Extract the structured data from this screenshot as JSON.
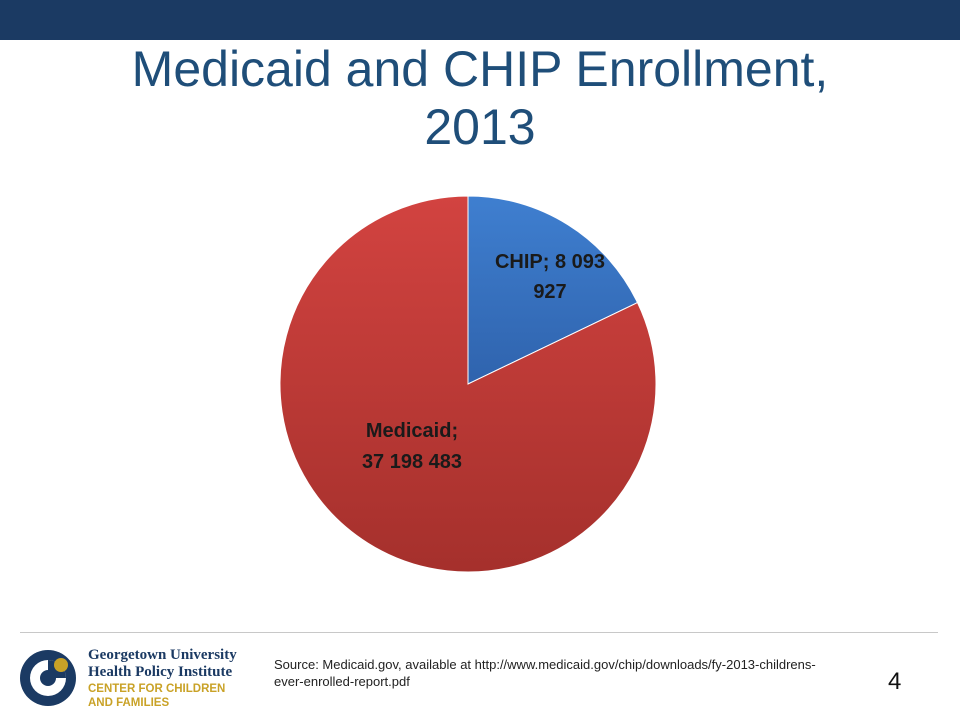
{
  "header": {
    "title_line1": "Medicaid and CHIP Enrollment,",
    "title_line2": "2013"
  },
  "colors": {
    "top_bar": "#1b3a63",
    "title": "#1f4e79",
    "chip": "#3b78c9",
    "medicaid": "#c93a37"
  },
  "chart_data": {
    "type": "pie",
    "slices": [
      {
        "name": "CHIP",
        "value": 8093927,
        "label_line1": "CHIP; 8 093",
        "label_line2": "927",
        "color": "#3b78c9"
      },
      {
        "name": "Medicaid",
        "value": 37198483,
        "label_line1": "Medicaid;",
        "label_line2": "37 198 483",
        "color": "#c93a37"
      }
    ]
  },
  "footer": {
    "logo_line1": "Georgetown University",
    "logo_line2": "Health Policy Institute",
    "logo_line3": "CENTER FOR CHILDREN",
    "logo_line4": "AND FAMILIES",
    "source_text": "Source: Medicaid.gov, available at http://www.medicaid.gov/chip/downloads/fy-2013-childrens-ever-enrolled-report.pdf",
    "page_number": "4"
  }
}
